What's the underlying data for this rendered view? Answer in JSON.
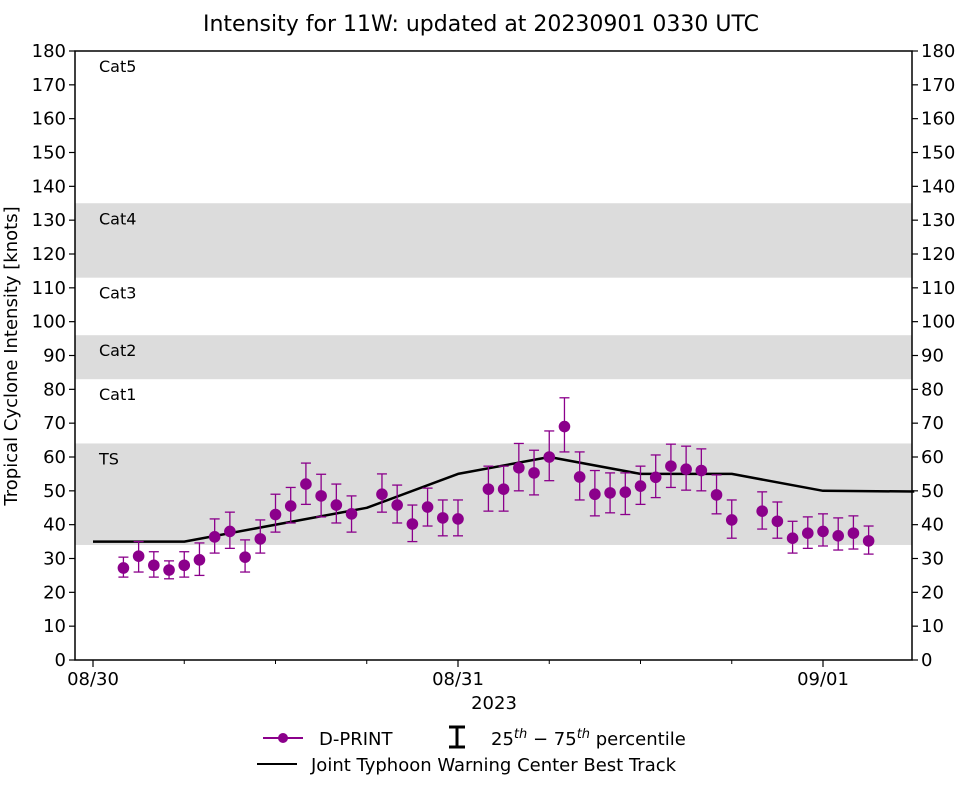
{
  "chart_data": {
    "type": "scatter",
    "title": "Intensity for 11W: updated at 20230901 0330 UTC",
    "xlabel": "2023",
    "ylabel": "Tropical Cyclone Intensity [knots]",
    "ylim": [
      0,
      180
    ],
    "xlim_hours_from_0830_00z": [
      -1.2,
      53.8
    ],
    "yticks": [
      0,
      10,
      20,
      30,
      40,
      50,
      60,
      70,
      80,
      90,
      100,
      110,
      120,
      130,
      140,
      150,
      160,
      170,
      180
    ],
    "xticks": [
      {
        "hour": 0,
        "label": "08/30"
      },
      {
        "hour": 24,
        "label": "08/31"
      },
      {
        "hour": 48,
        "label": "09/01"
      }
    ],
    "minor_xtick_hours": [
      6,
      12,
      18,
      30,
      36,
      42
    ],
    "categories": [
      {
        "label": "TS",
        "min": 34,
        "max": 64,
        "shaded": true
      },
      {
        "label": "Cat1",
        "min": 64,
        "max": 83,
        "shaded": false
      },
      {
        "label": "Cat2",
        "min": 83,
        "max": 96,
        "shaded": true
      },
      {
        "label": "Cat3",
        "min": 96,
        "max": 113,
        "shaded": false
      },
      {
        "label": "Cat4",
        "min": 113,
        "max": 135,
        "shaded": true
      },
      {
        "label": "Cat5",
        "min": 135,
        "max": 180,
        "shaded": false
      }
    ],
    "series": [
      {
        "name": "D-PRINT",
        "color": "#8b008b",
        "points": [
          {
            "x": 2,
            "y": 27.2,
            "p25": 24.5,
            "p75": 30.4
          },
          {
            "x": 3,
            "y": 30.7,
            "p25": 26.0,
            "p75": 35.0
          },
          {
            "x": 4,
            "y": 28.0,
            "p25": 24.5,
            "p75": 32.0
          },
          {
            "x": 5,
            "y": 26.6,
            "p25": 24.0,
            "p75": 29.3
          },
          {
            "x": 6,
            "y": 28.0,
            "p25": 24.5,
            "p75": 32.0
          },
          {
            "x": 7,
            "y": 29.6,
            "p25": 25.0,
            "p75": 34.6
          },
          {
            "x": 8,
            "y": 36.4,
            "p25": 31.6,
            "p75": 41.7
          },
          {
            "x": 9,
            "y": 38.0,
            "p25": 33.0,
            "p75": 43.7
          },
          {
            "x": 10,
            "y": 30.4,
            "p25": 26.0,
            "p75": 35.5
          },
          {
            "x": 11,
            "y": 35.8,
            "p25": 31.6,
            "p75": 41.4
          },
          {
            "x": 12,
            "y": 43.0,
            "p25": 37.8,
            "p75": 49.0
          },
          {
            "x": 13,
            "y": 45.5,
            "p25": 40.5,
            "p75": 51.0
          },
          {
            "x": 14,
            "y": 52.0,
            "p25": 46.0,
            "p75": 58.2
          },
          {
            "x": 15,
            "y": 48.5,
            "p25": 42.3,
            "p75": 54.9
          },
          {
            "x": 16,
            "y": 45.8,
            "p25": 40.5,
            "p75": 52.0
          },
          {
            "x": 17,
            "y": 43.2,
            "p25": 37.8,
            "p75": 48.5
          },
          {
            "x": 19,
            "y": 49.0,
            "p25": 43.7,
            "p75": 55.0
          },
          {
            "x": 20,
            "y": 45.8,
            "p25": 40.5,
            "p75": 51.7
          },
          {
            "x": 21,
            "y": 40.2,
            "p25": 35.0,
            "p75": 45.8
          },
          {
            "x": 22,
            "y": 45.2,
            "p25": 39.6,
            "p75": 50.8
          },
          {
            "x": 23,
            "y": 42.0,
            "p25": 36.7,
            "p75": 47.3
          },
          {
            "x": 24,
            "y": 41.7,
            "p25": 36.7,
            "p75": 47.3
          },
          {
            "x": 26,
            "y": 50.5,
            "p25": 44.0,
            "p75": 57.3
          },
          {
            "x": 27,
            "y": 50.5,
            "p25": 44.0,
            "p75": 57.3
          },
          {
            "x": 28,
            "y": 56.8,
            "p25": 50.0,
            "p75": 64.0
          },
          {
            "x": 29,
            "y": 55.3,
            "p25": 48.8,
            "p75": 62.0
          },
          {
            "x": 30,
            "y": 60.0,
            "p25": 53.0,
            "p75": 67.7
          },
          {
            "x": 31,
            "y": 69.0,
            "p25": 61.5,
            "p75": 77.5
          },
          {
            "x": 32,
            "y": 54.1,
            "p25": 47.3,
            "p75": 61.5
          },
          {
            "x": 33,
            "y": 49.0,
            "p25": 42.6,
            "p75": 56.0
          },
          {
            "x": 34,
            "y": 49.4,
            "p25": 43.5,
            "p75": 55.3
          },
          {
            "x": 35,
            "y": 49.6,
            "p25": 43.0,
            "p75": 55.3
          },
          {
            "x": 36,
            "y": 51.4,
            "p25": 46.0,
            "p75": 57.3
          },
          {
            "x": 37,
            "y": 54.0,
            "p25": 48.0,
            "p75": 60.6
          },
          {
            "x": 38,
            "y": 57.3,
            "p25": 51.0,
            "p75": 63.8
          },
          {
            "x": 39,
            "y": 56.4,
            "p25": 50.2,
            "p75": 63.2
          },
          {
            "x": 40,
            "y": 56.0,
            "p25": 50.0,
            "p75": 62.4
          },
          {
            "x": 41,
            "y": 48.8,
            "p25": 43.2,
            "p75": 54.7
          },
          {
            "x": 42,
            "y": 41.4,
            "p25": 36.0,
            "p75": 47.3
          },
          {
            "x": 44,
            "y": 44.0,
            "p25": 38.7,
            "p75": 49.7
          },
          {
            "x": 45,
            "y": 41.0,
            "p25": 36.0,
            "p75": 46.7
          },
          {
            "x": 46,
            "y": 36.0,
            "p25": 31.6,
            "p75": 41.0
          },
          {
            "x": 47,
            "y": 37.5,
            "p25": 33.0,
            "p75": 42.3
          },
          {
            "x": 48,
            "y": 38.0,
            "p25": 33.7,
            "p75": 43.2
          },
          {
            "x": 49,
            "y": 36.7,
            "p25": 32.5,
            "p75": 42.0
          },
          {
            "x": 50,
            "y": 37.5,
            "p25": 32.8,
            "p75": 42.6
          },
          {
            "x": 51,
            "y": 35.2,
            "p25": 31.3,
            "p75": 39.6
          }
        ]
      },
      {
        "name": "Joint Typhoon Warning Center Best Track",
        "color": "#000000",
        "points": [
          {
            "x": 0,
            "y": 35
          },
          {
            "x": 6,
            "y": 35
          },
          {
            "x": 18,
            "y": 45
          },
          {
            "x": 24,
            "y": 55
          },
          {
            "x": 30,
            "y": 60
          },
          {
            "x": 36,
            "y": 55
          },
          {
            "x": 42,
            "y": 55
          },
          {
            "x": 48,
            "y": 50
          },
          {
            "x": 54,
            "y": 49.8
          }
        ]
      }
    ],
    "legend": {
      "placement": "bottom-center",
      "dprint_label": "D-PRINT",
      "percentile_base_1": "25",
      "percentile_sup_1": "th",
      "percentile_dash": " − ",
      "percentile_base_2": "75",
      "percentile_sup_2": "th",
      "percentile_suffix": " percentile",
      "jtwc_label": "Joint Typhoon Warning Center Best Track"
    },
    "band_color": "#dcdcdc"
  }
}
